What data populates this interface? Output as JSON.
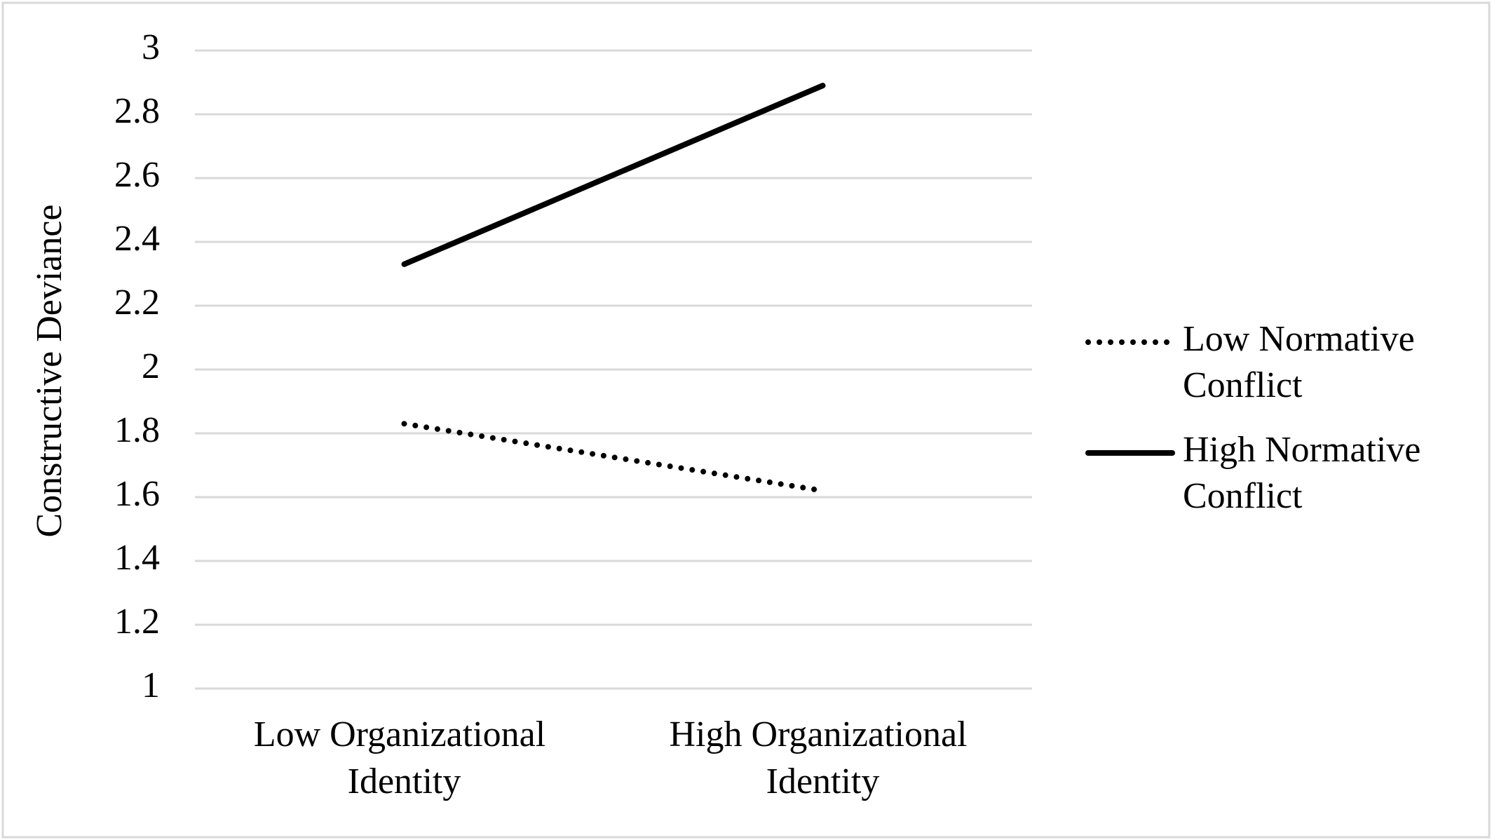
{
  "chart_data": {
    "type": "line",
    "y_label": "Constructive Deviance",
    "categories": [
      "Low Organizational Identity",
      "High Organizational Identity"
    ],
    "series": [
      {
        "name": "Low Normative Conflict",
        "color": "#000000",
        "style": "dotted",
        "values": [
          1.83,
          1.62
        ]
      },
      {
        "name": "High Normative Conflict",
        "color": "#000000",
        "style": "solid",
        "values": [
          2.33,
          2.89
        ]
      }
    ],
    "ylim": [
      1,
      3
    ],
    "yticks": [
      1,
      1.2,
      1.4,
      1.6,
      1.8,
      2,
      2.2,
      2.4,
      2.6,
      2.8,
      3
    ],
    "grid": true,
    "legend": "right"
  }
}
